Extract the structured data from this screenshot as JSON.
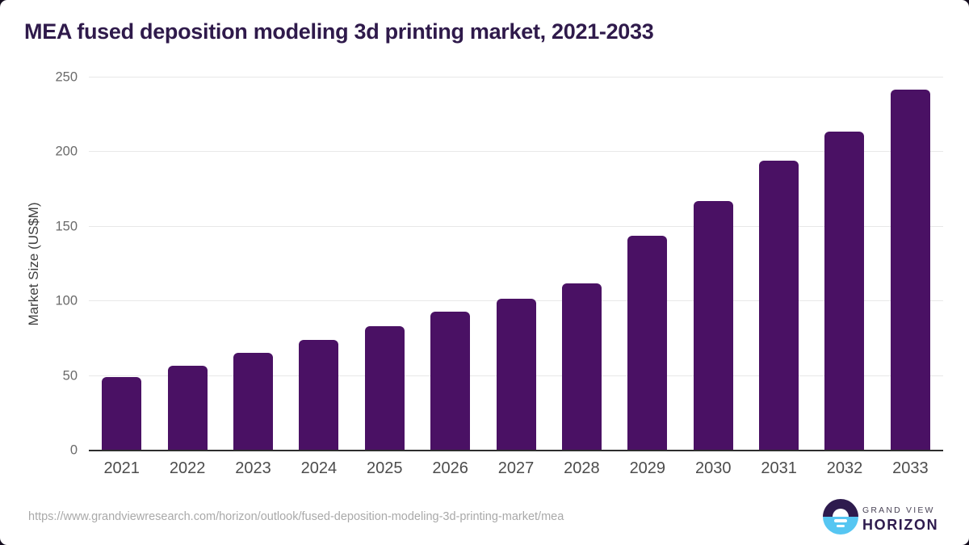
{
  "page": {
    "title": "MEA fused deposition modeling 3d printing market, 2021-2033",
    "source_url": "https://www.grandviewresearch.com/horizon/outlook/fused-deposition-modeling-3d-printing-market/mea"
  },
  "chart_data": {
    "type": "bar",
    "title": "MEA fused deposition modeling 3d printing market, 2021-2033",
    "categories": [
      "2021",
      "2022",
      "2023",
      "2024",
      "2025",
      "2026",
      "2027",
      "2028",
      "2029",
      "2030",
      "2031",
      "2032",
      "2033"
    ],
    "values": [
      49.5,
      57,
      65.3,
      74.1,
      83.3,
      93.1,
      101.7,
      112,
      144,
      167.2,
      194.5,
      213.8,
      241.9
    ],
    "xlabel": "",
    "ylabel": "Market Size (US$M)",
    "ylim": [
      0,
      250
    ],
    "yticks": [
      0,
      50,
      100,
      150,
      200,
      250
    ],
    "grid": "horizontal",
    "legend": "none",
    "bar_color": "#4a1164",
    "title_color": "#2f1a4b",
    "gridline_color": "#e8e8e8",
    "axis_color": "#2e2e2e"
  },
  "branding": {
    "logo_top_text": "GRAND VIEW",
    "logo_bottom_text": "HORIZON",
    "logo_purple": "#2e1b4e",
    "logo_blue": "#56c6f2"
  }
}
